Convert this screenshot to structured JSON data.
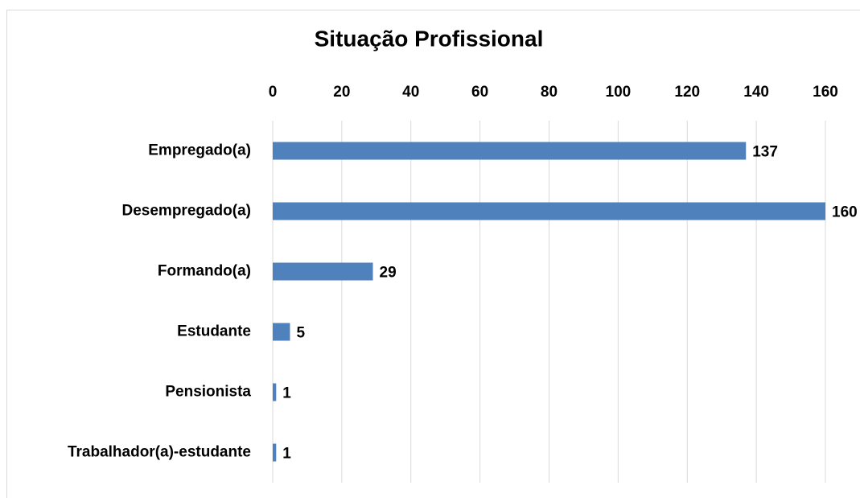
{
  "chart_data": {
    "type": "bar",
    "title": "Situação Profissional",
    "categories": [
      "Empregado(a)",
      "Desempregado(a)",
      "Formando(a)",
      "Estudante",
      "Pensionista",
      "Trabalhador(a)-estudante"
    ],
    "values": [
      137,
      160,
      29,
      5,
      1,
      1
    ],
    "color": "#4f81bd",
    "xlim": [
      0,
      160
    ],
    "xticks": [
      0,
      20,
      40,
      60,
      80,
      100,
      120,
      140,
      160
    ],
    "grid": true
  }
}
